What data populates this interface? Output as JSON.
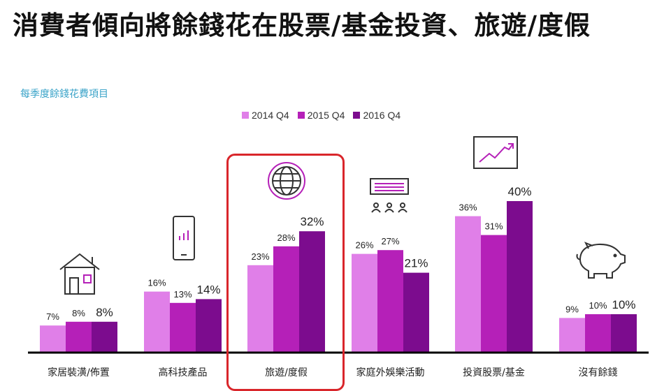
{
  "page": {
    "title": "消費者傾向將餘錢花在股票/基金投資、旅遊/度假"
  },
  "colors": {
    "series_2014": "#e07fe8",
    "series_2015": "#b520b8",
    "series_2016": "#7c0c8e",
    "highlight": "#d9262b",
    "baseline": "#000000",
    "icon": "#333333",
    "icon_accent": "#b520b8"
  },
  "chart_data": {
    "type": "bar",
    "title": "每季度餘錢花費項目",
    "categories": [
      "家居裝潢/佈置",
      "高科技產品",
      "旅遊/度假",
      "家庭外娛樂活動",
      "投資股票/基金",
      "沒有餘錢"
    ],
    "icons": [
      "house-icon",
      "smartphone-icon",
      "globe-icon",
      "entertainment-icon",
      "stock-chart-icon",
      "piggy-bank-icon"
    ],
    "series": [
      {
        "name": "2014 Q4",
        "values": [
          7,
          16,
          23,
          26,
          36,
          9
        ]
      },
      {
        "name": "2015 Q4",
        "values": [
          8,
          13,
          28,
          27,
          31,
          10
        ]
      },
      {
        "name": "2016 Q4",
        "values": [
          8,
          14,
          32,
          21,
          40,
          10
        ]
      }
    ],
    "unit": "%",
    "legend_position": "top",
    "highlighted_category": "旅遊/度假",
    "grid": false
  }
}
